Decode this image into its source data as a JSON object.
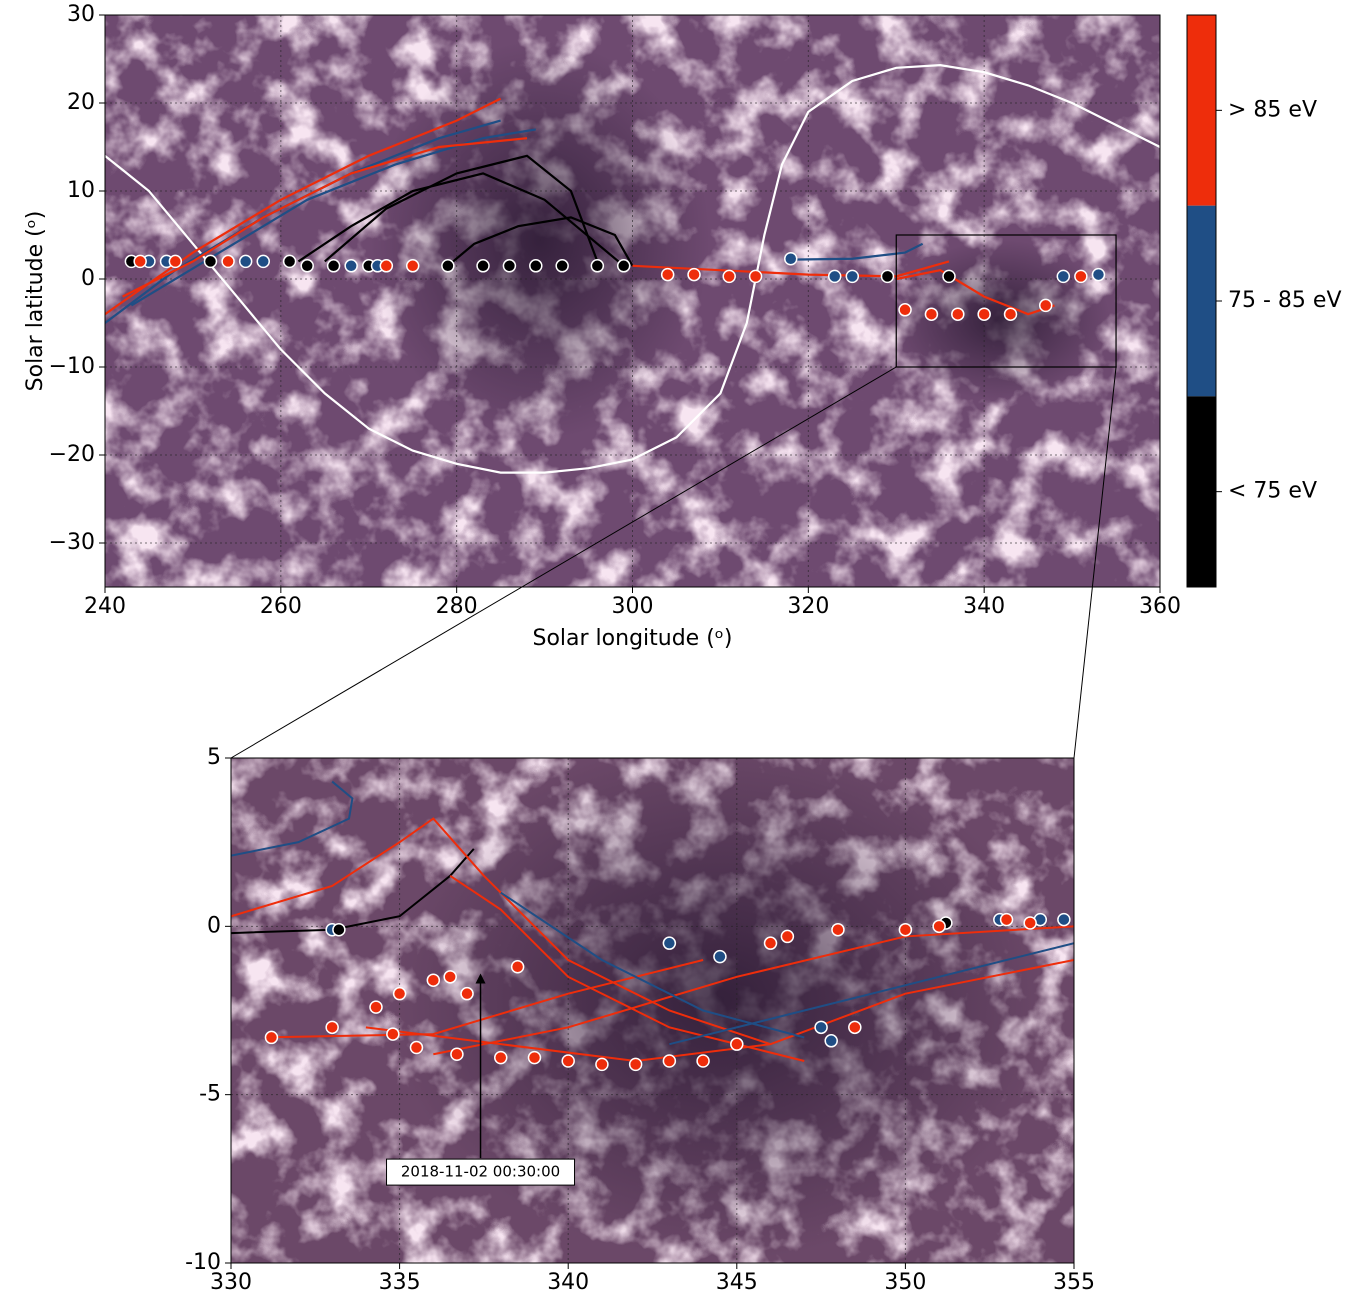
{
  "chart_data": [
    {
      "type": "map",
      "xlabel": "Solar longitude (ᵒ)",
      "ylabel": "Solar latitude (ᵒ)",
      "xlim": [
        240,
        360
      ],
      "ylim": [
        -35,
        30
      ],
      "xticks": [
        240,
        260,
        280,
        300,
        320,
        340,
        360
      ],
      "yticks": [
        {
          "value": -30,
          "label": "−30"
        },
        {
          "value": -20,
          "label": "−20"
        },
        {
          "value": -10,
          "label": "−10"
        },
        0,
        10,
        20,
        30
      ],
      "grid": true,
      "colorbar": {
        "labels": [
          "> 85 eV",
          "75 - 85 eV",
          "< 75 eV"
        ],
        "colors": [
          "#ee2d0b",
          "#1f4e85",
          "#000000"
        ]
      },
      "series": [
        {
          "type": "line",
          "color": "#ffffff",
          "x": [
            240,
            245,
            250,
            255,
            260,
            265,
            270,
            275,
            280,
            285,
            290,
            295,
            300,
            305,
            310,
            313,
            315,
            317,
            320,
            325,
            330,
            335,
            340,
            345,
            350,
            355,
            360
          ],
          "y": [
            14,
            10,
            4,
            -2,
            -8,
            -13,
            -17,
            -19.5,
            -21,
            -22,
            -22,
            -21.5,
            -20.5,
            -18,
            -13,
            -5,
            5,
            13,
            19,
            22.5,
            24,
            24.3,
            23.5,
            22,
            20,
            17.5,
            15
          ]
        },
        {
          "type": "line",
          "color": "#1f4e85",
          "x": [
            240,
            248,
            258,
            268,
            278,
            285
          ],
          "y": [
            -5,
            1,
            7,
            12,
            16,
            18
          ]
        },
        {
          "type": "line",
          "color": "#1f4e85",
          "x": [
            243,
            253,
            263,
            273,
            283,
            289
          ],
          "y": [
            -3,
            3,
            9,
            13,
            16,
            17
          ]
        },
        {
          "type": "line",
          "color": "#ee2d0b",
          "x": [
            240,
            250,
            260,
            270,
            280,
            285
          ],
          "y": [
            -4,
            3,
            9,
            14,
            18,
            20.5
          ]
        },
        {
          "type": "line",
          "color": "#ee2d0b",
          "x": [
            242,
            250,
            258,
            268,
            278,
            288
          ],
          "y": [
            -2,
            2,
            7,
            12,
            15,
            16
          ]
        },
        {
          "type": "line",
          "color": "#000000",
          "x": [
            279,
            282,
            287,
            293,
            298,
            300
          ],
          "y": [
            1.5,
            4,
            6,
            7,
            5,
            1.5
          ]
        },
        {
          "type": "line",
          "color": "#000000",
          "x": [
            262,
            268,
            275,
            283,
            290,
            296,
            299
          ],
          "y": [
            2,
            6,
            10,
            12,
            9,
            4,
            1.5
          ]
        },
        {
          "type": "line",
          "color": "#000000",
          "x": [
            265,
            272,
            280,
            288,
            293,
            296
          ],
          "y": [
            2,
            8,
            12,
            14,
            10,
            2
          ]
        },
        {
          "type": "line",
          "color": "#1f4e85",
          "x": [
            318,
            325,
            331,
            333
          ],
          "y": [
            2.2,
            2.3,
            3,
            4
          ]
        },
        {
          "type": "line",
          "color": "#ee2d0b",
          "x": [
            300,
            310,
            320,
            330,
            336
          ],
          "y": [
            1.5,
            1,
            0.5,
            0.3,
            2
          ]
        },
        {
          "type": "line",
          "color": "#ee2d0b",
          "x": [
            330,
            335,
            340,
            345,
            348
          ],
          "y": [
            0,
            1,
            -2,
            -4,
            -3
          ]
        },
        {
          "type": "scatter",
          "color": "#000000",
          "x": [
            243,
            252,
            261,
            263,
            266,
            270,
            279,
            283,
            286,
            289,
            292,
            296,
            299,
            329,
            336
          ],
          "y": [
            2,
            2,
            2,
            1.5,
            1.5,
            1.5,
            1.5,
            1.5,
            1.5,
            1.5,
            1.5,
            1.5,
            1.5,
            0.3,
            0.3
          ]
        },
        {
          "type": "scatter",
          "color": "#1f4e85",
          "x": [
            245,
            247,
            256,
            258,
            268,
            271,
            318,
            323,
            325,
            349,
            353
          ],
          "y": [
            2,
            2,
            2,
            2,
            1.5,
            1.5,
            2.3,
            0.3,
            0.3,
            0.3,
            0.5
          ]
        },
        {
          "type": "scatter",
          "color": "#ee2d0b",
          "x": [
            244,
            248,
            254,
            272,
            275,
            304,
            307,
            311,
            314,
            331,
            334,
            337,
            340,
            343,
            347,
            351
          ],
          "y": [
            2,
            2,
            2,
            1.5,
            1.5,
            0.5,
            0.5,
            0.3,
            0.3,
            -3.5,
            -4,
            -4,
            -4,
            -4,
            -3,
            0.3
          ]
        }
      ]
    },
    {
      "type": "map",
      "xlim": [
        330,
        355
      ],
      "ylim": [
        -10,
        5
      ],
      "xticks": [
        330,
        335,
        340,
        345,
        350,
        355
      ],
      "yticks": [
        -10,
        -5,
        0,
        5
      ],
      "grid": true,
      "annotation": {
        "text": "2018-11-02 00:30:00",
        "xy": [
          337.4,
          -1.4
        ],
        "xytext": [
          337.4,
          -7.3
        ]
      },
      "series": [
        {
          "type": "line",
          "color": "#1f4e85",
          "x": [
            330,
            332,
            333.5,
            333.6,
            333
          ],
          "y": [
            2.1,
            2.5,
            3.2,
            3.8,
            4.3
          ]
        },
        {
          "type": "line",
          "color": "#000000",
          "x": [
            330,
            333,
            335,
            336.5,
            337.2
          ],
          "y": [
            -0.2,
            -0.1,
            0.3,
            1.5,
            2.3
          ]
        },
        {
          "type": "line",
          "color": "#ee2d0b",
          "x": [
            330,
            333,
            335,
            336,
            337.5,
            340,
            343,
            346
          ],
          "y": [
            0.3,
            1.2,
            2.5,
            3.2,
            1.5,
            -1,
            -2.5,
            -3.5
          ]
        },
        {
          "type": "line",
          "color": "#ee2d0b",
          "x": [
            334,
            338,
            342,
            346,
            350,
            355
          ],
          "y": [
            -3,
            -3.5,
            -4,
            -3.5,
            -2,
            -1
          ]
        },
        {
          "type": "line",
          "color": "#ee2d0b",
          "x": [
            336,
            340,
            345,
            350,
            355
          ],
          "y": [
            -3.8,
            -3,
            -1.5,
            -0.3,
            0
          ]
        },
        {
          "type": "line",
          "color": "#ee2d0b",
          "x": [
            331,
            336,
            340,
            344
          ],
          "y": [
            -3.3,
            -3.2,
            -2,
            -1
          ]
        },
        {
          "type": "line",
          "color": "#ee2d0b",
          "x": [
            336.5,
            338,
            340,
            343,
            347
          ],
          "y": [
            1.5,
            0.5,
            -1.5,
            -3,
            -4
          ]
        },
        {
          "type": "line",
          "color": "#1f4e85",
          "x": [
            343,
            347,
            351,
            355
          ],
          "y": [
            -3.5,
            -2.5,
            -1.5,
            -0.5
          ]
        },
        {
          "type": "line",
          "color": "#1f4e85",
          "x": [
            338,
            341,
            344,
            347
          ],
          "y": [
            1,
            -1,
            -2.5,
            -3.3
          ]
        },
        {
          "type": "scatter",
          "color": "#1f4e85",
          "x": [
            333,
            343,
            344.5,
            347.8,
            352.8,
            354,
            354.7,
            347.5
          ],
          "y": [
            -0.1,
            -0.5,
            -0.9,
            -3.4,
            0.2,
            0.2,
            0.2,
            -3
          ]
        },
        {
          "type": "scatter",
          "color": "#000000",
          "x": [
            333.2,
            351.2
          ],
          "y": [
            -0.1,
            0.1
          ]
        },
        {
          "type": "scatter",
          "color": "#ee2d0b",
          "x": [
            331.2,
            333,
            334.3,
            334.8,
            335.5,
            336,
            336.7,
            337,
            338,
            339,
            340,
            341,
            342,
            343,
            344,
            345,
            346,
            346.5,
            348,
            348.5,
            350,
            351,
            353,
            353.7,
            335,
            336.5,
            338.5
          ],
          "y": [
            -3.3,
            -3,
            -2.4,
            -3.2,
            -3.6,
            -1.6,
            -3.8,
            -2,
            -3.9,
            -3.9,
            -4,
            -4.1,
            -4.1,
            -4,
            -4,
            -3.5,
            -0.5,
            -0.3,
            -0.1,
            -3,
            -0.1,
            0,
            0.2,
            0.1,
            -2,
            -1.5,
            -1.2
          ]
        }
      ]
    }
  ]
}
